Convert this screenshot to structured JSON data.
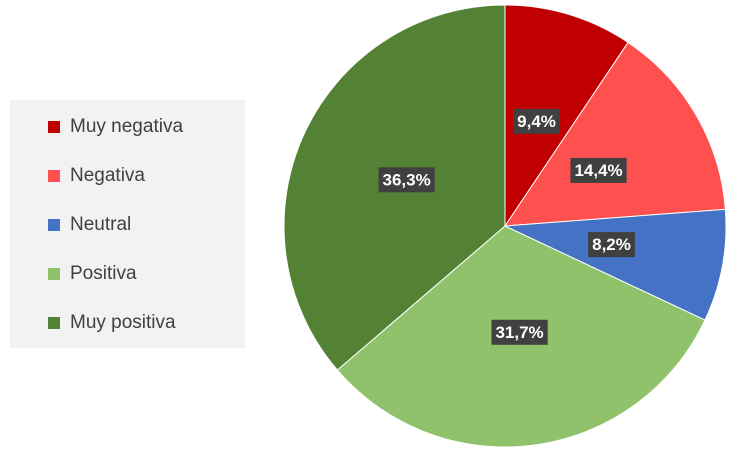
{
  "chart_data": {
    "type": "pie",
    "categories": [
      "Muy negativa",
      "Negativa",
      "Neutral",
      "Positiva",
      "Muy positiva"
    ],
    "values": [
      9.4,
      14.4,
      8.2,
      31.7,
      36.3
    ],
    "value_labels": [
      "9,4%",
      "14,4%",
      "8,2%",
      "31,7%",
      "36,3%"
    ],
    "colors": [
      "#c00000",
      "#ff5050",
      "#4472c4",
      "#8fc26b",
      "#548235"
    ],
    "legend": "left"
  }
}
